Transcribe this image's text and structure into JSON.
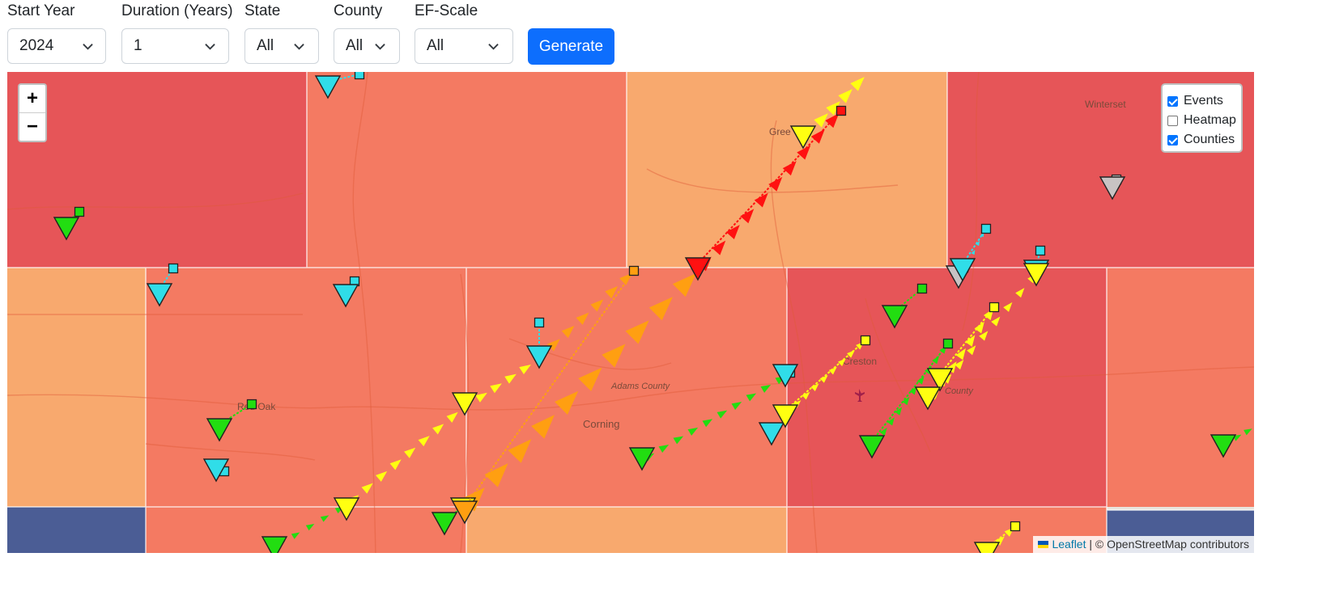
{
  "filters": {
    "start_year": {
      "label": "Start Year",
      "value": "2024"
    },
    "duration": {
      "label": "Duration (Years)",
      "value": "1"
    },
    "state": {
      "label": "State",
      "value": "All"
    },
    "county": {
      "label": "County",
      "value": "All"
    },
    "ef_scale": {
      "label": "EF-Scale",
      "value": "All"
    },
    "generate_label": "Generate"
  },
  "map": {
    "zoom_in": "+",
    "zoom_out": "−",
    "layers": [
      {
        "label": "Events",
        "checked": true
      },
      {
        "label": "Heatmap",
        "checked": false
      },
      {
        "label": "Counties",
        "checked": true
      }
    ],
    "attribution": {
      "leaflet": "Leaflet",
      "osm": "© OpenStreetMap contributors"
    },
    "place_labels": [
      "Winterset",
      "Red Oak",
      "Adams County",
      "Corning",
      "Creston",
      "County",
      "Gree"
    ],
    "colors": {
      "county_darkred": "#e65558",
      "county_red": "#f47a62",
      "county_orange": "#f8a96e",
      "county_blue": "#4b5d95",
      "ef_green": "#22dd11",
      "ef_cyan": "#30dde8",
      "ef_yellow": "#ffff11",
      "ef_orange": "#ff9f11",
      "ef_red": "#ff1111",
      "ef_gray": "#c8c3c3"
    }
  }
}
